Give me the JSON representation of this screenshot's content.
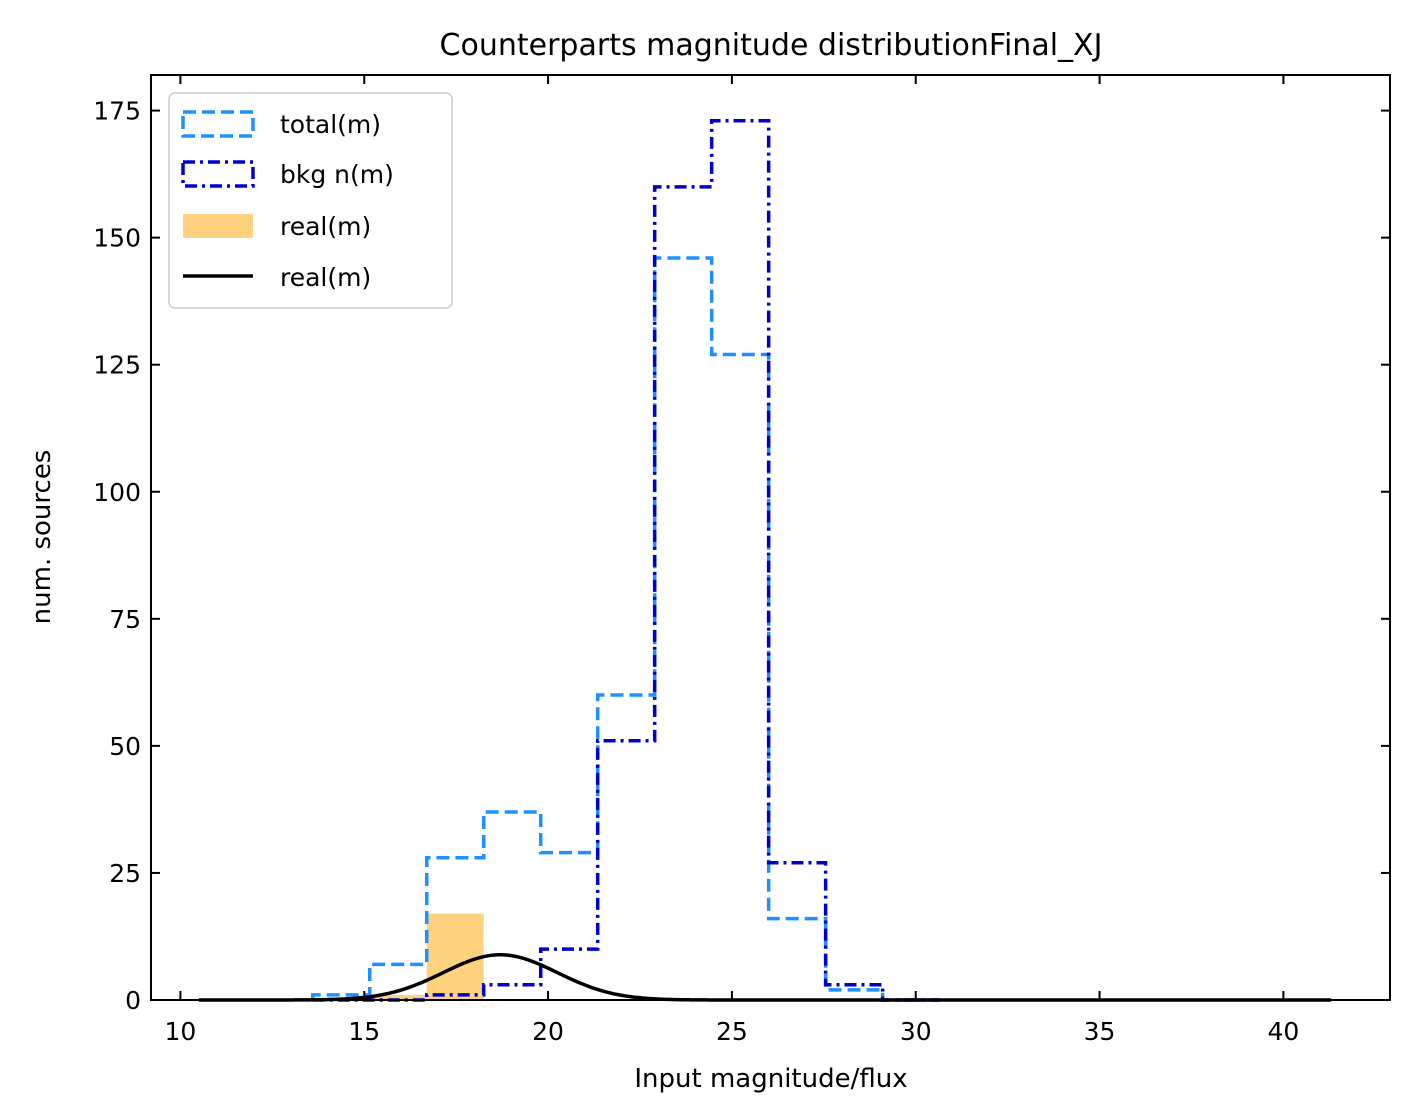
{
  "chart_data": {
    "type": "step-histogram",
    "title": "Counterparts magnitude distributionFinal_XJ",
    "xlabel": "Input magnitude/flux",
    "ylabel": "num. sources",
    "xlim": [
      9.2,
      42.9
    ],
    "ylim": [
      0,
      182
    ],
    "xticks": [
      10,
      15,
      20,
      25,
      30,
      35,
      40
    ],
    "yticks": [
      0,
      25,
      50,
      75,
      100,
      125,
      150,
      175
    ],
    "xtick_labels": [
      "10",
      "15",
      "20",
      "25",
      "30",
      "35",
      "40"
    ],
    "ytick_labels": [
      "0",
      "25",
      "50",
      "75",
      "100",
      "125",
      "150",
      "175"
    ],
    "bin_edges": [
      13.6,
      15.15,
      16.7,
      18.25,
      19.8,
      21.35,
      22.9,
      24.45,
      26.0,
      27.55,
      29.1,
      30.65
    ],
    "series": [
      {
        "name": "total(m)",
        "style": "dashed-step",
        "color": "#1e90ff",
        "values": [
          1,
          7,
          28,
          37,
          29,
          60,
          146,
          127,
          16,
          2,
          0
        ]
      },
      {
        "name": "bkg n(m)",
        "style": "dashdot-step",
        "color": "#0000cd",
        "values": [
          0,
          0,
          1,
          3,
          10,
          51,
          160,
          173,
          27,
          3,
          0
        ]
      },
      {
        "name": "real(m)",
        "style": "filled-bar",
        "color": "#ffd27f",
        "values": [
          0,
          1,
          17,
          0,
          0,
          0,
          0,
          0,
          0,
          0,
          0
        ]
      },
      {
        "name": "real(m)",
        "style": "line",
        "color": "#000000",
        "gaussian": {
          "amplitude": 8.9,
          "mean": 18.7,
          "sigma": 1.55
        },
        "x_range": [
          10.5,
          41.3
        ]
      }
    ],
    "legend": {
      "position": "upper-left",
      "entries": [
        "total(m)",
        "bkg n(m)",
        "real(m)",
        "real(m)"
      ]
    },
    "grid": false
  }
}
